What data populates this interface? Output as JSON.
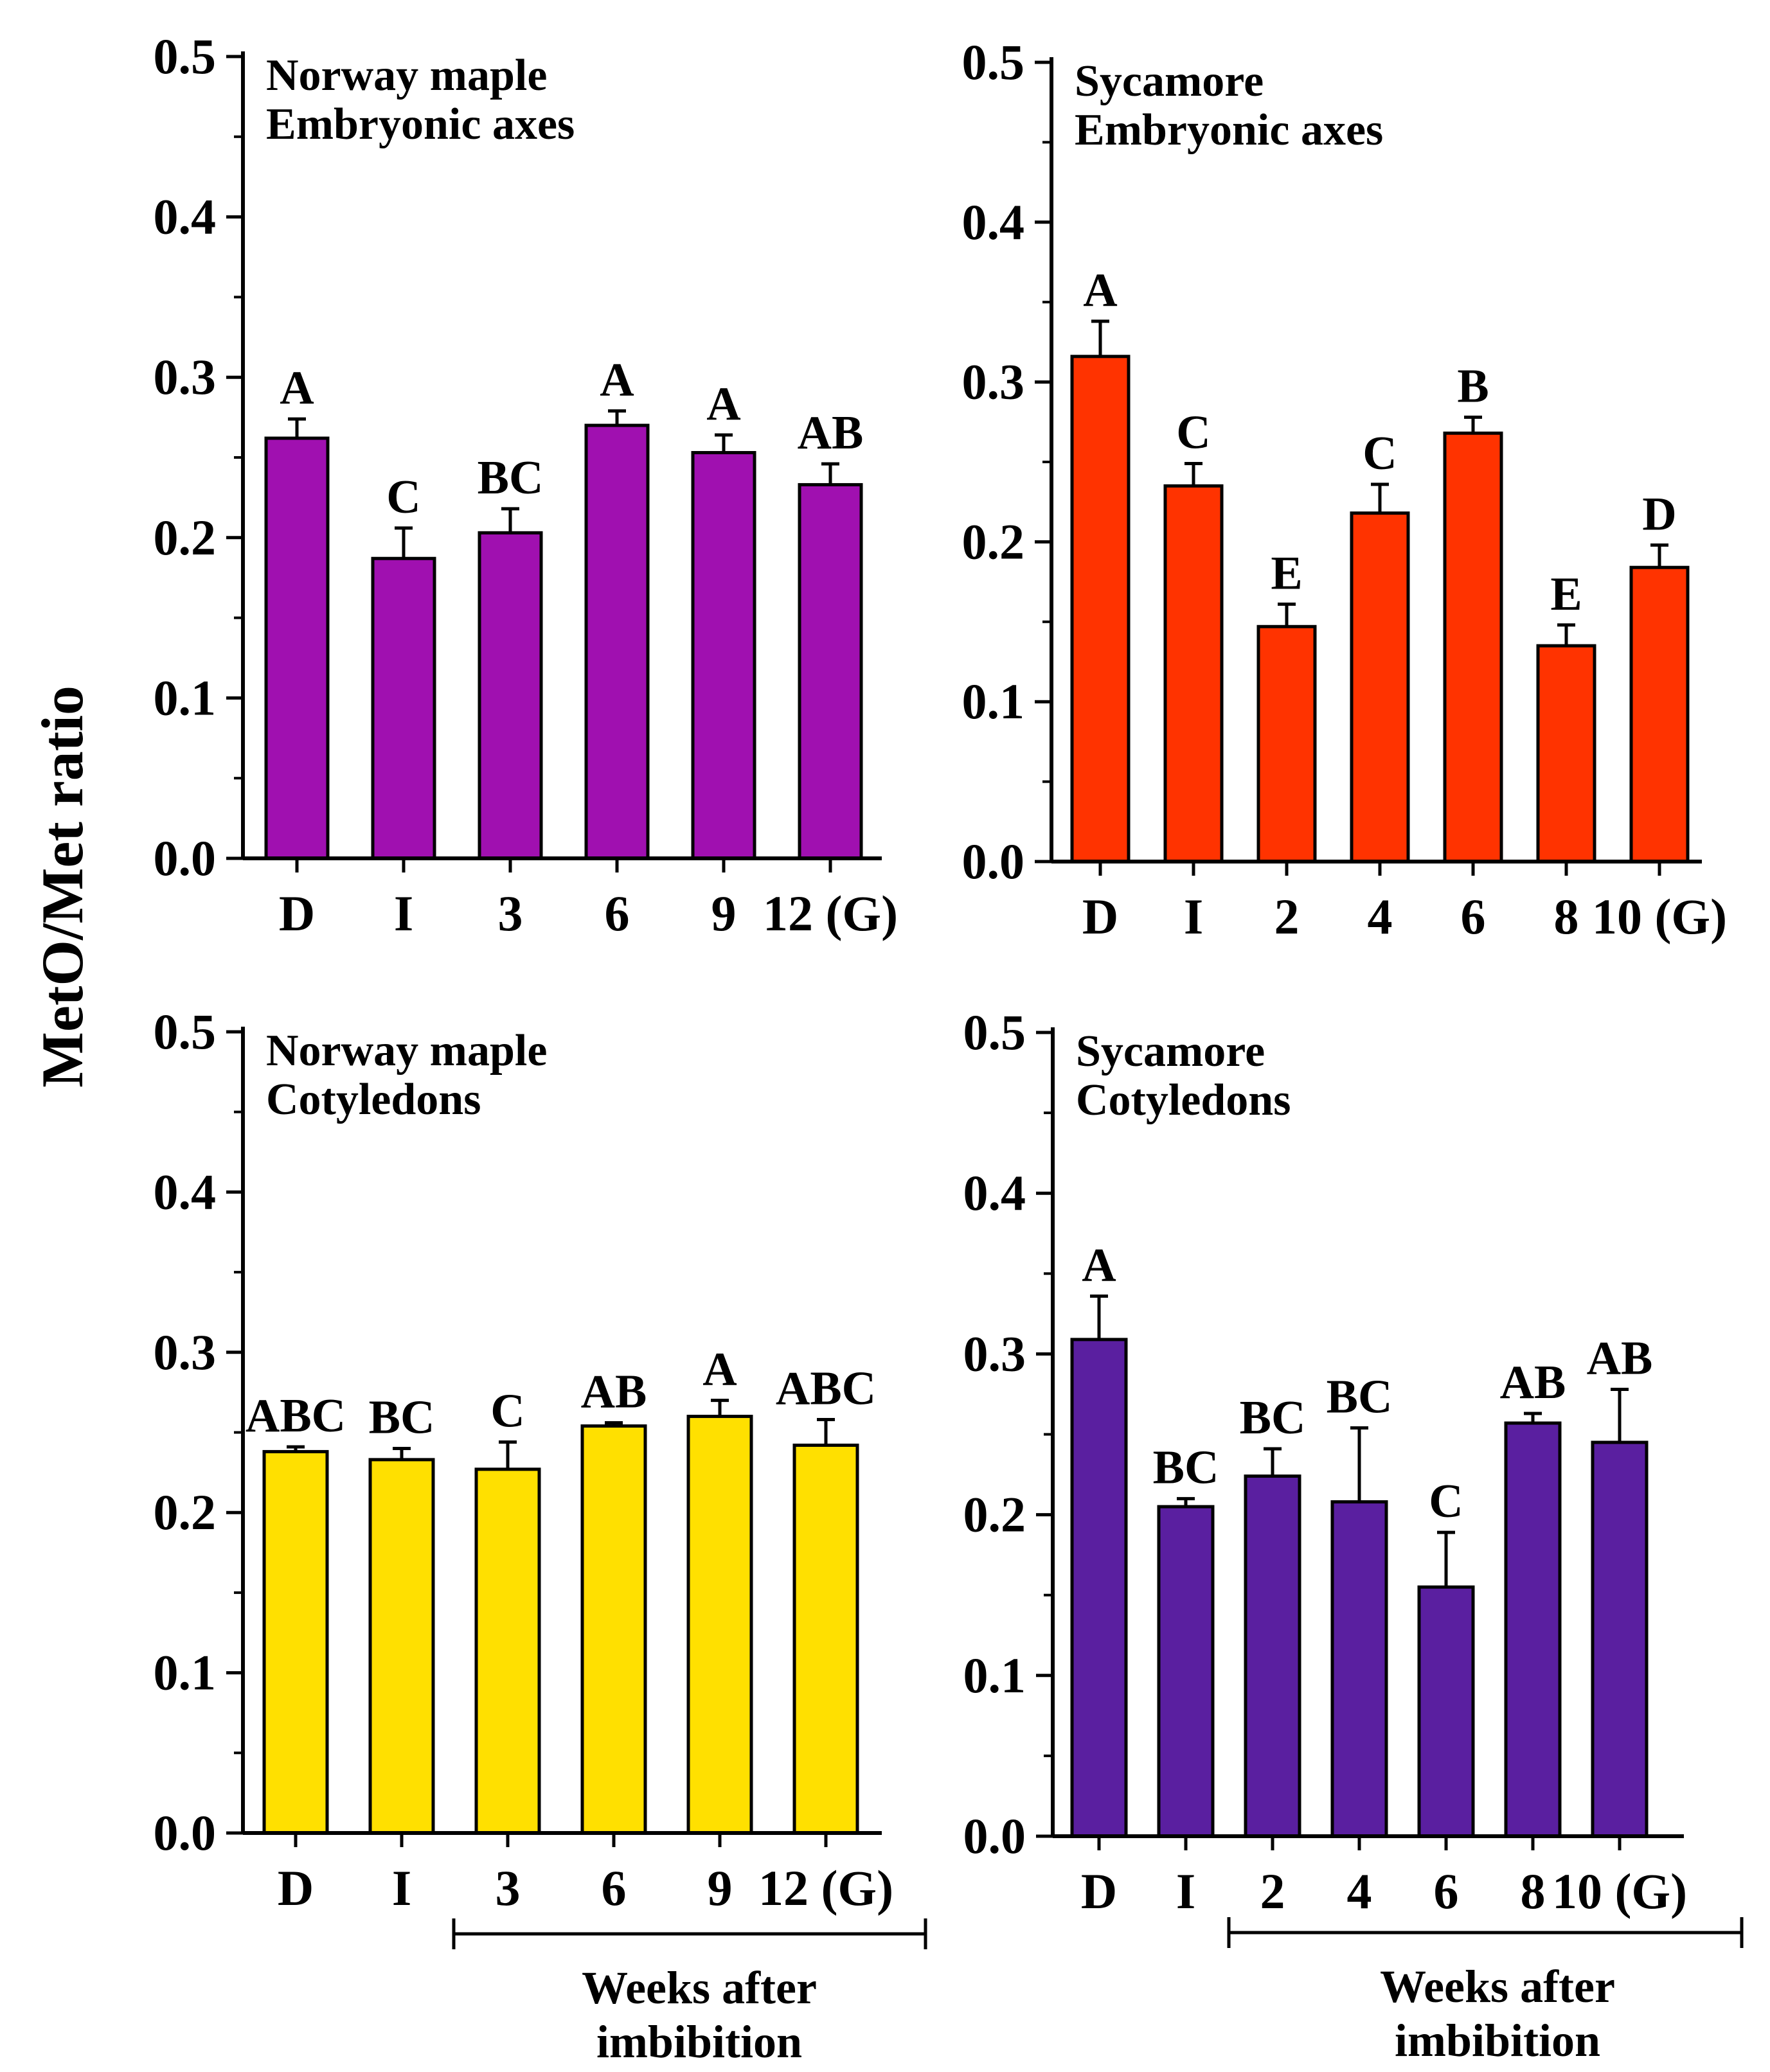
{
  "figure": {
    "ylabel": "MetO/Met ratio",
    "weeks_label_line1": "Weeks after",
    "weeks_label_line2": "imbibition"
  },
  "colors": {
    "purple": "#A010B0",
    "red": "#FF3300",
    "yellow": "#FFE000",
    "indigo": "#5A1FA0"
  },
  "chart_data": [
    {
      "type": "bar",
      "title": "Norway maple",
      "subtitle": "Embryonic axes",
      "xlabel": "",
      "ylabel": "MetO/Met ratio",
      "ylim": [
        0,
        0.5
      ],
      "yticks": [
        "0.0",
        "0.1",
        "0.2",
        "0.3",
        "0.4",
        "0.5"
      ],
      "categories": [
        "D",
        "I",
        "3",
        "6",
        "9",
        "12 (G)"
      ],
      "values": [
        0.262,
        0.187,
        0.203,
        0.27,
        0.253,
        0.233
      ],
      "errors": [
        0.012,
        0.019,
        0.015,
        0.009,
        0.011,
        0.013
      ],
      "labels": [
        "A",
        "C",
        "BC",
        "A",
        "A",
        "AB"
      ],
      "color": "#A010B0"
    },
    {
      "type": "bar",
      "title": "Sycamore",
      "subtitle": "Embryonic axes",
      "xlabel": "",
      "ylabel": "MetO/Met ratio",
      "ylim": [
        0,
        0.5
      ],
      "yticks": [
        "0.0",
        "0.1",
        "0.2",
        "0.3",
        "0.4",
        "0.5"
      ],
      "categories": [
        "D",
        "I",
        "2",
        "4",
        "6",
        "8",
        "10 (G)"
      ],
      "values": [
        0.316,
        0.235,
        0.147,
        0.218,
        0.268,
        0.135,
        0.184
      ],
      "errors": [
        0.022,
        0.014,
        0.014,
        0.018,
        0.01,
        0.013,
        0.014
      ],
      "labels": [
        "A",
        "C",
        "E",
        "C",
        "B",
        "E",
        "D"
      ],
      "color": "#FF3300"
    },
    {
      "type": "bar",
      "title": "Norway maple",
      "subtitle": "Cotyledons",
      "xlabel": "Weeks after imbibition",
      "ylabel": "MetO/Met ratio",
      "ylim": [
        0,
        0.5
      ],
      "yticks": [
        "0.0",
        "0.1",
        "0.2",
        "0.3",
        "0.4",
        "0.5"
      ],
      "categories": [
        "D",
        "I",
        "3",
        "6",
        "9",
        "12 (G)"
      ],
      "values": [
        0.238,
        0.233,
        0.227,
        0.254,
        0.26,
        0.242
      ],
      "errors": [
        0.003,
        0.007,
        0.017,
        0.002,
        0.01,
        0.016
      ],
      "labels": [
        "ABC",
        "BC",
        "C",
        "AB",
        "A",
        "ABC"
      ],
      "color": "#FFE000"
    },
    {
      "type": "bar",
      "title": "Sycamore",
      "subtitle": "Cotyledons",
      "xlabel": "Weeks after imbibition",
      "ylabel": "MetO/Met ratio",
      "ylim": [
        0,
        0.5
      ],
      "yticks": [
        "0.0",
        "0.1",
        "0.2",
        "0.3",
        "0.4",
        "0.5"
      ],
      "categories": [
        "D",
        "I",
        "2",
        "4",
        "6",
        "8",
        "10 (G)"
      ],
      "values": [
        0.309,
        0.205,
        0.224,
        0.208,
        0.155,
        0.257,
        0.245
      ],
      "errors": [
        0.027,
        0.005,
        0.017,
        0.046,
        0.034,
        0.006,
        0.033
      ],
      "labels": [
        "A",
        "BC",
        "BC",
        "BC",
        "C",
        "AB",
        "AB"
      ],
      "color": "#5A1FA0"
    }
  ]
}
